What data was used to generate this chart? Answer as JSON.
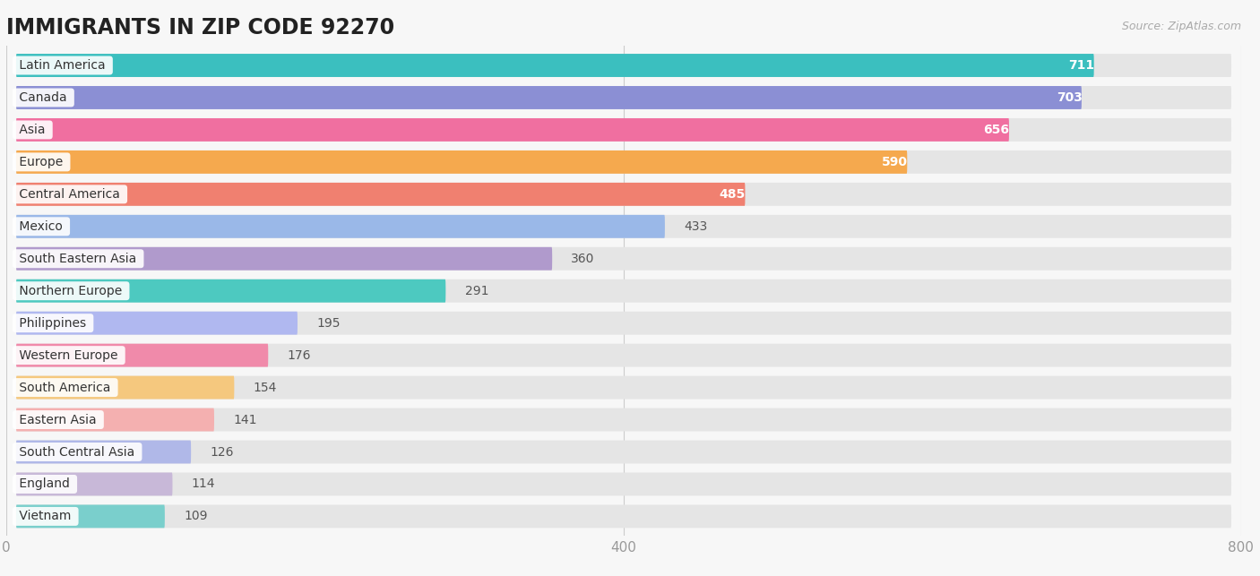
{
  "title": "IMMIGRANTS IN ZIP CODE 92270",
  "source": "Source: ZipAtlas.com",
  "categories": [
    "Latin America",
    "Canada",
    "Asia",
    "Europe",
    "Central America",
    "Mexico",
    "South Eastern Asia",
    "Northern Europe",
    "Philippines",
    "Western Europe",
    "South America",
    "Eastern Asia",
    "South Central Asia",
    "England",
    "Vietnam"
  ],
  "values": [
    711,
    703,
    656,
    590,
    485,
    433,
    360,
    291,
    195,
    176,
    154,
    141,
    126,
    114,
    109
  ],
  "bar_colors": [
    "#3bbfbf",
    "#8b8fd4",
    "#f06fa0",
    "#f5a94e",
    "#f08070",
    "#9ab8e8",
    "#b09acc",
    "#4dc9c0",
    "#b0b8f0",
    "#f08aaa",
    "#f5c87e",
    "#f4b0b0",
    "#b0b8e8",
    "#c8b8d8",
    "#7acfcc"
  ],
  "xlim": [
    0,
    800
  ],
  "xticks": [
    0,
    400,
    800
  ],
  "background_color": "#f7f7f7",
  "bar_bg_color": "#e5e5e5",
  "title_fontsize": 17,
  "tick_fontsize": 11,
  "value_fontsize": 10,
  "label_fontsize": 10
}
